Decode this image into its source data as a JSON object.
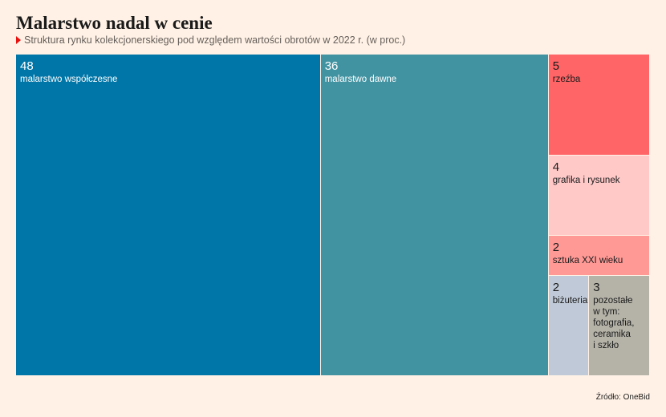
{
  "header": {
    "title": "Malarstwo nadal w cenie",
    "subtitle": "Struktura rynku kolekcjonerskiego pod względem wartości obrotów w 2022 r. (w proc.)"
  },
  "footer": {
    "source": "Źródło: OneBid"
  },
  "chart_data": {
    "type": "treemap",
    "title": "Malarstwo nadal w cenie",
    "subtitle": "Struktura rynku kolekcjonerskiego pod względem wartości obrotów w 2022 r. (w proc.)",
    "unit": "%",
    "items": [
      {
        "label": "malarstwo współczesne",
        "value": 48,
        "color": "#0076a8",
        "text_color": "#ffffff"
      },
      {
        "label": "malarstwo dawne",
        "value": 36,
        "color": "#4293a2",
        "text_color": "#ffffff"
      },
      {
        "label": "rzeźba",
        "value": 5,
        "color": "#ff6466",
        "text_color": "#1a1a1a"
      },
      {
        "label": "grafika i rysunek",
        "value": 4,
        "color": "#ffc9c8",
        "text_color": "#1a1a1a"
      },
      {
        "label": "sztuka XXI wieku",
        "value": 2,
        "color": "#ff9996",
        "text_color": "#1a1a1a"
      },
      {
        "label": "biżuteria",
        "value": 2,
        "color": "#c0c9d7",
        "text_color": "#1a1a1a"
      },
      {
        "label": "pozostałe\nw tym:\nfotografia,\nceramika\ni szkło",
        "value": 3,
        "color": "#b5b3a8",
        "text_color": "#1a1a1a"
      }
    ],
    "source": "Źródło: OneBid"
  }
}
